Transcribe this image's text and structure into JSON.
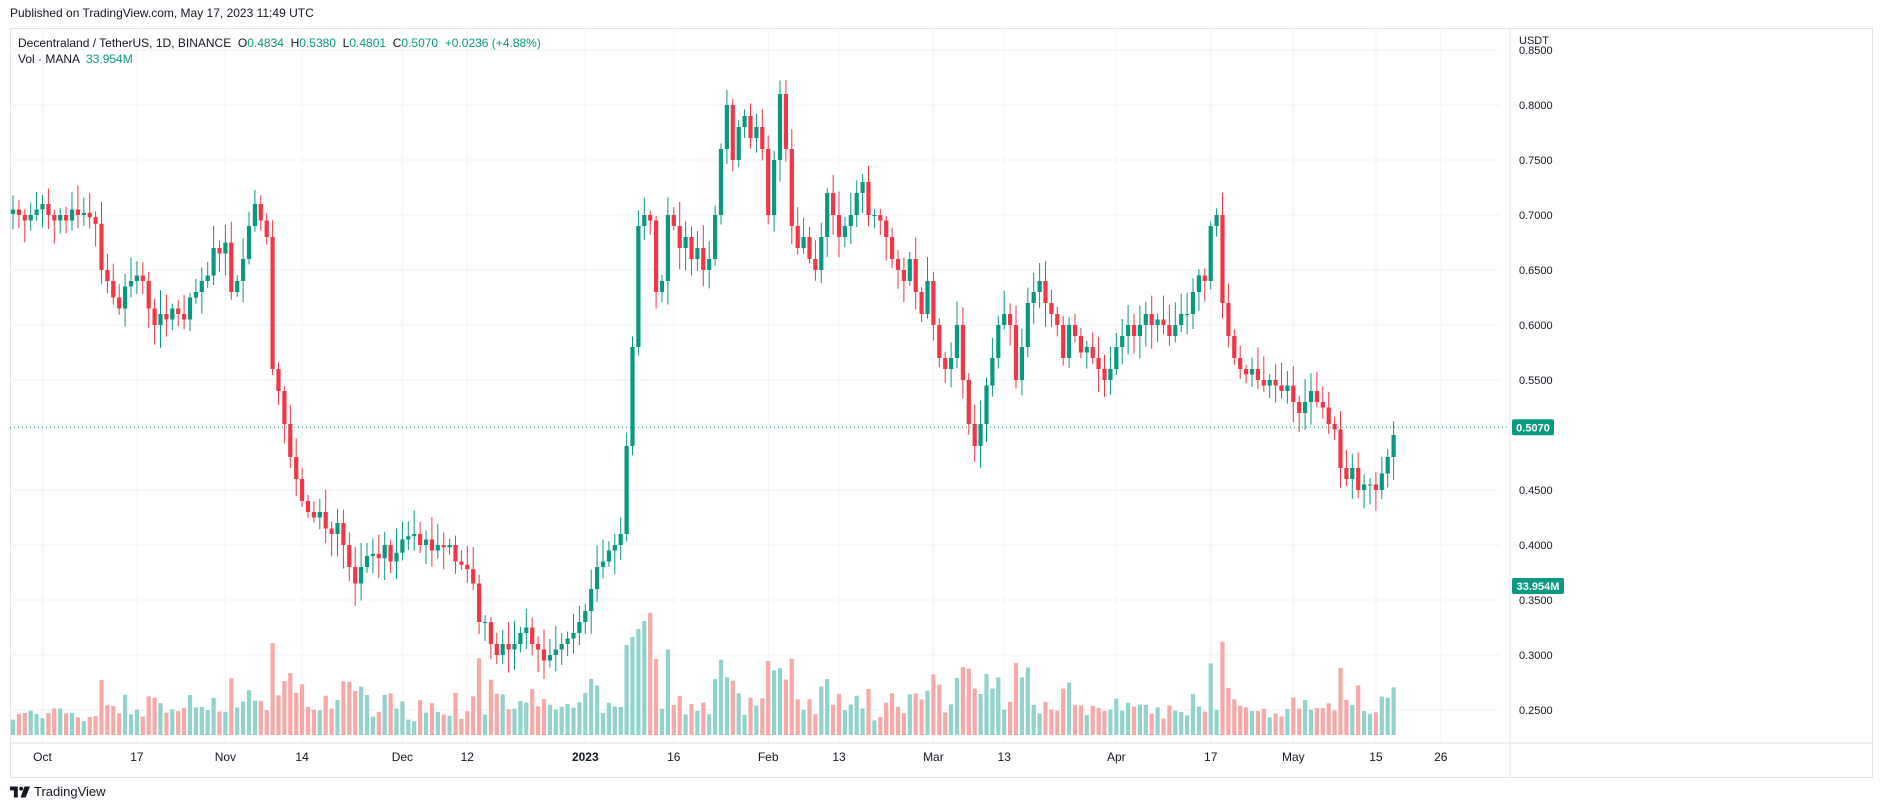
{
  "published": "Published on TradingView.com, May 17, 2023 11:49 UTC",
  "legend": {
    "symbol": "Decentraland / TetherUS, 1D, BINANCE",
    "o_key": "O",
    "o_val": "0.4834",
    "h_key": "H",
    "h_val": "0.5380",
    "l_key": "L",
    "l_val": "0.4801",
    "c_key": "C",
    "c_val": "0.5070",
    "change": "+0.0236 (+4.88%)",
    "vol_label": "Vol · MANA",
    "vol_val": "33.954M"
  },
  "footer": {
    "brand": "TradingView"
  },
  "colors": {
    "up": "#089981",
    "down": "#f23645",
    "up_vol": "#92d2cc",
    "down_vol": "#f7a9a7",
    "grid": "#f0f3fa",
    "text": "#131722"
  },
  "chart_data": {
    "type": "candlestick",
    "title": "Decentraland / TetherUS, 1D, BINANCE",
    "currency": "USDT",
    "y_range": [
      0.22,
      0.87
    ],
    "y_ticks": [
      "0.8500",
      "0.8000",
      "0.7500",
      "0.7000",
      "0.6500",
      "0.6000",
      "0.5500",
      "0.4500",
      "0.4000",
      "0.3500",
      "0.3000",
      "0.2500"
    ],
    "x_ticks": [
      {
        "label": "Oct",
        "date": "2022-10-01"
      },
      {
        "label": "17",
        "date": "2022-10-17"
      },
      {
        "label": "Nov",
        "date": "2022-11-01"
      },
      {
        "label": "14",
        "date": "2022-11-14"
      },
      {
        "label": "Dec",
        "date": "2022-12-01"
      },
      {
        "label": "12",
        "date": "2022-12-12"
      },
      {
        "label": "2023",
        "date": "2023-01-01"
      },
      {
        "label": "16",
        "date": "2023-01-16"
      },
      {
        "label": "Feb",
        "date": "2023-02-01"
      },
      {
        "label": "13",
        "date": "2023-02-13"
      },
      {
        "label": "Mar",
        "date": "2023-03-01"
      },
      {
        "label": "13",
        "date": "2023-03-13"
      },
      {
        "label": "Apr",
        "date": "2023-04-01"
      },
      {
        "label": "17",
        "date": "2023-04-17"
      },
      {
        "label": "May",
        "date": "2023-05-01"
      },
      {
        "label": "15",
        "date": "2023-05-15"
      },
      {
        "label": "26",
        "date": "2023-05-26"
      }
    ],
    "first_date": "2022-09-26",
    "last_price": "0.5070",
    "last_volume": "33.954M",
    "close": [
      0.705,
      0.7,
      0.695,
      0.7,
      0.705,
      0.71,
      0.7,
      0.695,
      0.7,
      0.695,
      0.705,
      0.7,
      0.702,
      0.698,
      0.692,
      0.65,
      0.64,
      0.625,
      0.615,
      0.635,
      0.64,
      0.645,
      0.64,
      0.615,
      0.6,
      0.61,
      0.605,
      0.615,
      0.61,
      0.605,
      0.625,
      0.63,
      0.64,
      0.645,
      0.67,
      0.665,
      0.675,
      0.63,
      0.64,
      0.66,
      0.69,
      0.71,
      0.695,
      0.68,
      0.56,
      0.54,
      0.51,
      0.48,
      0.46,
      0.44,
      0.43,
      0.425,
      0.43,
      0.415,
      0.41,
      0.42,
      0.4,
      0.38,
      0.365,
      0.38,
      0.39,
      0.392,
      0.388,
      0.4,
      0.385,
      0.393,
      0.405,
      0.408,
      0.41,
      0.4,
      0.405,
      0.395,
      0.4,
      0.398,
      0.4,
      0.385,
      0.382,
      0.378,
      0.365,
      0.33,
      0.33,
      0.31,
      0.3,
      0.31,
      0.305,
      0.31,
      0.32,
      0.325,
      0.31,
      0.305,
      0.295,
      0.3,
      0.305,
      0.31,
      0.315,
      0.32,
      0.33,
      0.34,
      0.36,
      0.38,
      0.385,
      0.395,
      0.4,
      0.41,
      0.49,
      0.58,
      0.69,
      0.7,
      0.695,
      0.63,
      0.64,
      0.7,
      0.69,
      0.67,
      0.68,
      0.66,
      0.67,
      0.65,
      0.66,
      0.7,
      0.76,
      0.8,
      0.75,
      0.78,
      0.79,
      0.77,
      0.78,
      0.76,
      0.7,
      0.75,
      0.81,
      0.76,
      0.69,
      0.67,
      0.68,
      0.66,
      0.65,
      0.68,
      0.72,
      0.7,
      0.68,
      0.69,
      0.7,
      0.72,
      0.73,
      0.7,
      0.7,
      0.695,
      0.68,
      0.66,
      0.65,
      0.64,
      0.66,
      0.63,
      0.61,
      0.64,
      0.6,
      0.57,
      0.56,
      0.57,
      0.6,
      0.55,
      0.51,
      0.49,
      0.51,
      0.545,
      0.57,
      0.6,
      0.61,
      0.6,
      0.55,
      0.58,
      0.62,
      0.63,
      0.64,
      0.62,
      0.61,
      0.6,
      0.57,
      0.6,
      0.59,
      0.575,
      0.58,
      0.57,
      0.56,
      0.55,
      0.56,
      0.58,
      0.59,
      0.6,
      0.59,
      0.6,
      0.61,
      0.6,
      0.605,
      0.6,
      0.59,
      0.6,
      0.61,
      0.61,
      0.63,
      0.645,
      0.64,
      0.69,
      0.7,
      0.62,
      0.59,
      0.57,
      0.56,
      0.555,
      0.56,
      0.55,
      0.545,
      0.55,
      0.545,
      0.54,
      0.545,
      0.53,
      0.52,
      0.53,
      0.54,
      0.53,
      0.525,
      0.51,
      0.505,
      0.47,
      0.46,
      0.47,
      0.45,
      0.455,
      0.455,
      0.45,
      0.465,
      0.48,
      0.5
    ]
  }
}
